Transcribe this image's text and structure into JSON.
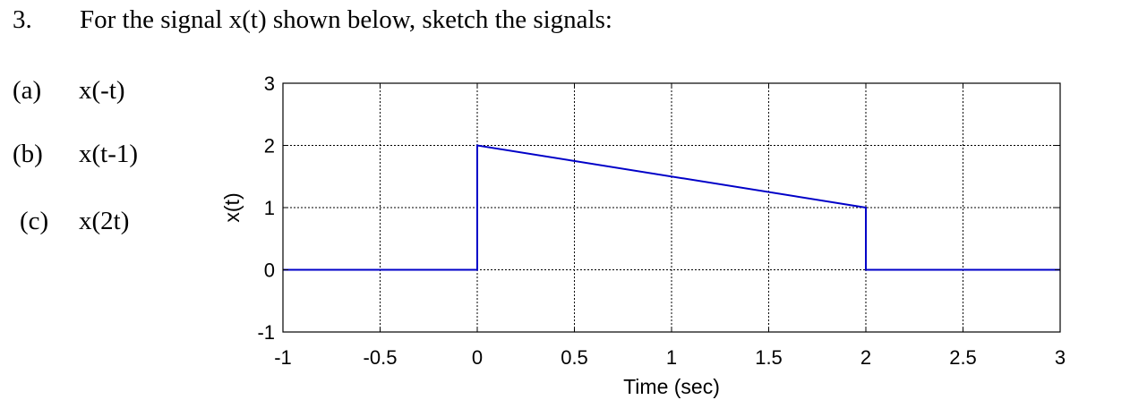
{
  "question": {
    "number": "3.",
    "prompt": "For the signal x(t) shown below, sketch the signals:",
    "parts": [
      {
        "label": "(a)",
        "expr": "x(-t)"
      },
      {
        "label": "(b)",
        "expr": "x(t-1)"
      },
      {
        "label": "(c)",
        "expr": "x(2t)"
      }
    ]
  },
  "chart_data": {
    "type": "line",
    "xlabel": "Time (sec)",
    "ylabel": "x(t)",
    "xlim": [
      -1,
      3
    ],
    "ylim": [
      -1,
      3
    ],
    "xticks": [
      -1,
      -0.5,
      0,
      0.5,
      1,
      1.5,
      2,
      2.5,
      3
    ],
    "xtick_labels": [
      "-1",
      "-0.5",
      "0",
      "0.5",
      "1",
      "1.5",
      "2",
      "2.5",
      "3"
    ],
    "yticks": [
      -1,
      0,
      1,
      2,
      3
    ],
    "ytick_labels": [
      "-1",
      "0",
      "1",
      "2",
      "3"
    ],
    "grid": true,
    "series": [
      {
        "color": "#0000c8",
        "x": [
          -1,
          0,
          0,
          2,
          2,
          3
        ],
        "y": [
          0,
          0,
          2,
          1,
          0,
          0
        ]
      }
    ]
  }
}
